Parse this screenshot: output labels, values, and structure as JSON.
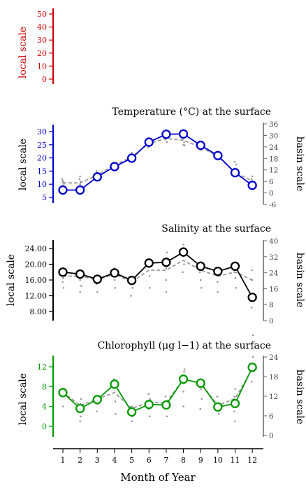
{
  "chart_data": [
    {
      "type": "line",
      "title": "",
      "ylabel_left": "local scale",
      "color": "#cc0000",
      "ylim_left": [
        -5,
        55
      ],
      "yticks_left": [
        "0",
        "10",
        "20",
        "30",
        "40",
        "50"
      ],
      "yticks_left_values": [
        0,
        10,
        20,
        30,
        40,
        50
      ],
      "series": []
    },
    {
      "type": "line",
      "title": "Temperature (°C) at the surface",
      "ylabel_left": "local scale",
      "ylabel_right": "basin scale",
      "color": "#0000cc",
      "ylim_left": [
        3,
        32
      ],
      "ylim_right": [
        -6,
        36
      ],
      "yticks_left": [
        "5",
        "10",
        "15",
        "20",
        "25",
        "30"
      ],
      "yticks_left_values": [
        5,
        10,
        15,
        20,
        25,
        30
      ],
      "yticks_right": [
        "-6",
        "0",
        "6",
        "12",
        "18",
        "24",
        "30",
        "36"
      ],
      "yticks_right_values": [
        -6,
        0,
        6,
        12,
        18,
        24,
        30,
        36
      ],
      "x": [
        1,
        2,
        3,
        4,
        5,
        6,
        7,
        8,
        9,
        10,
        11,
        12
      ],
      "local": [
        7.8,
        7.8,
        12.8,
        16.7,
        19.9,
        26.0,
        29.0,
        29.1,
        24.8,
        20.9,
        14.4,
        9.6
      ],
      "basin": [
        10.5,
        10.5,
        13.5,
        17.3,
        20.4,
        25.5,
        27.4,
        26.7,
        24.1,
        20.6,
        14.4,
        11.3
      ],
      "basin_points": [
        [
          1,
          9.0
        ],
        [
          1,
          9.5
        ],
        [
          1,
          10.2
        ],
        [
          1,
          10.8
        ],
        [
          1,
          11.3
        ],
        [
          1,
          12.0
        ],
        [
          2,
          9.0
        ],
        [
          2,
          10.0
        ],
        [
          2,
          11.0
        ],
        [
          2,
          12.0
        ],
        [
          2,
          13.0
        ],
        [
          3,
          12.5
        ],
        [
          3,
          13.5
        ],
        [
          3,
          15.0
        ],
        [
          3,
          12.0
        ],
        [
          4,
          15.5
        ],
        [
          4,
          17.0
        ],
        [
          4,
          18.0
        ],
        [
          4,
          16.5
        ],
        [
          5,
          19.0
        ],
        [
          5,
          20.0
        ],
        [
          5,
          21.5
        ],
        [
          5,
          22.0
        ],
        [
          5,
          18.8
        ],
        [
          6,
          24.0
        ],
        [
          6,
          25.0
        ],
        [
          6,
          26.5
        ],
        [
          6,
          25.8
        ],
        [
          7,
          26.0
        ],
        [
          7,
          27.0
        ],
        [
          7,
          28.0
        ],
        [
          7,
          28.5
        ],
        [
          8,
          25.0
        ],
        [
          8,
          26.0
        ],
        [
          8,
          27.0
        ],
        [
          8,
          28.0
        ],
        [
          8,
          24.8
        ],
        [
          9,
          23.0
        ],
        [
          9,
          24.0
        ],
        [
          9,
          25.0
        ],
        [
          9,
          26.0
        ],
        [
          10,
          19.5
        ],
        [
          10,
          20.5
        ],
        [
          10,
          21.5
        ],
        [
          10,
          22.0
        ],
        [
          11,
          13.5
        ],
        [
          11,
          15.0
        ],
        [
          11,
          16.0
        ],
        [
          11,
          17.5
        ],
        [
          11,
          18.5
        ],
        [
          12,
          10.0
        ],
        [
          12,
          11.0
        ],
        [
          12,
          12.0
        ],
        [
          12,
          13.0
        ]
      ]
    },
    {
      "type": "line",
      "title": "Salinity at the surface",
      "ylabel_left": "local scale",
      "ylabel_right": "basin scale",
      "color": "#000000",
      "ylim_left": [
        6,
        26
      ],
      "ylim_right": [
        0,
        40
      ],
      "yticks_left": [
        "8.00",
        "12.00",
        "16.00",
        "20.00",
        "24.00"
      ],
      "yticks_left_values": [
        8,
        12,
        16,
        20,
        24
      ],
      "yticks_right": [
        "0",
        "8",
        "16",
        "24",
        "32",
        "40"
      ],
      "yticks_right_values": [
        0,
        8,
        16,
        24,
        32,
        40
      ],
      "x": [
        1,
        2,
        3,
        4,
        5,
        6,
        7,
        8,
        9,
        10,
        11,
        12
      ],
      "local": [
        18.0,
        17.5,
        16.2,
        17.8,
        15.9,
        20.3,
        20.5,
        23.1,
        19.5,
        18.2,
        19.5,
        11.6
      ],
      "basin": [
        17.0,
        17.0,
        16.0,
        17.5,
        15.5,
        18.5,
        18.5,
        21.0,
        18.5,
        17.0,
        18.0,
        16.0
      ],
      "basin_points": [
        [
          1,
          14.0
        ],
        [
          1,
          15.5
        ],
        [
          1,
          16.5
        ],
        [
          2,
          13.0
        ],
        [
          2,
          14.5
        ],
        [
          2,
          16.0
        ],
        [
          2,
          17.5
        ],
        [
          3,
          13.0
        ],
        [
          3,
          15.0
        ],
        [
          3,
          16.0
        ],
        [
          4,
          14.0
        ],
        [
          4,
          16.0
        ],
        [
          4,
          19.0
        ],
        [
          5,
          12.0
        ],
        [
          5,
          14.0
        ],
        [
          5,
          15.5
        ],
        [
          5,
          16.5
        ],
        [
          6,
          14.0
        ],
        [
          6,
          17.0
        ],
        [
          6,
          19.5
        ],
        [
          6,
          21.0
        ],
        [
          7,
          13.0
        ],
        [
          7,
          16.0
        ],
        [
          7,
          19.0
        ],
        [
          7,
          23.0
        ],
        [
          8,
          18.0
        ],
        [
          8,
          20.0
        ],
        [
          8,
          22.0
        ],
        [
          8,
          25.0
        ],
        [
          9,
          14.0
        ],
        [
          9,
          16.0
        ],
        [
          9,
          18.0
        ],
        [
          9,
          20.0
        ],
        [
          10,
          13.0
        ],
        [
          10,
          15.5
        ],
        [
          10,
          17.0
        ],
        [
          11,
          14.0
        ],
        [
          11,
          16.5
        ],
        [
          11,
          18.0
        ],
        [
          12,
          2.0
        ],
        [
          12,
          9.0
        ],
        [
          12,
          16.0
        ],
        [
          12,
          18.5
        ]
      ]
    },
    {
      "type": "line",
      "title": "Chlorophyll (μg l−1) at the surface",
      "ylabel_left": "local scale",
      "ylabel_right": "basin scale",
      "color": "#009900",
      "ylim_left": [
        -2,
        14
      ],
      "ylim_right": [
        0,
        24
      ],
      "yticks_left": [
        "0",
        "4",
        "8",
        "12"
      ],
      "yticks_left_values": [
        0,
        4,
        8,
        12
      ],
      "yticks_right": [
        "0",
        "6",
        "12",
        "18",
        "24"
      ],
      "yticks_right_values": [
        0,
        6,
        12,
        18,
        24
      ],
      "x": [
        1,
        2,
        3,
        4,
        5,
        6,
        7,
        8,
        9,
        10,
        11,
        12
      ],
      "local": [
        6.8,
        3.6,
        5.4,
        8.5,
        2.9,
        4.4,
        4.3,
        9.5,
        8.7,
        3.9,
        4.6,
        11.9
      ],
      "basin": [
        6.9,
        4.2,
        5.5,
        6.8,
        3.6,
        4.8,
        4.8,
        9.5,
        8.7,
        4.2,
        5.6,
        11.5
      ],
      "basin_points": [
        [
          1,
          4.0
        ],
        [
          1,
          6.0
        ],
        [
          1,
          7.5
        ],
        [
          2,
          1.0
        ],
        [
          2,
          2.0
        ],
        [
          2,
          3.0
        ],
        [
          2,
          4.5
        ],
        [
          2,
          5.5
        ],
        [
          3,
          3.0
        ],
        [
          3,
          4.5
        ],
        [
          3,
          6.0
        ],
        [
          4,
          2.5
        ],
        [
          4,
          5.0
        ],
        [
          4,
          8.0
        ],
        [
          4,
          9.5
        ],
        [
          5,
          1.0
        ],
        [
          5,
          2.0
        ],
        [
          5,
          3.0
        ],
        [
          5,
          4.0
        ],
        [
          6,
          2.0
        ],
        [
          6,
          3.5
        ],
        [
          6,
          5.5
        ],
        [
          6,
          6.5
        ],
        [
          7,
          2.0
        ],
        [
          7,
          4.0
        ],
        [
          7,
          6.0
        ],
        [
          8,
          4.0
        ],
        [
          8,
          7.0
        ],
        [
          8,
          9.0
        ],
        [
          8,
          11.0
        ],
        [
          8,
          11.5
        ],
        [
          9,
          3.5
        ],
        [
          9,
          5.5
        ],
        [
          9,
          7.5
        ],
        [
          9,
          9.5
        ],
        [
          10,
          2.5
        ],
        [
          10,
          4.0
        ],
        [
          10,
          6.0
        ],
        [
          11,
          1.0
        ],
        [
          11,
          3.0
        ],
        [
          11,
          6.0
        ],
        [
          11,
          7.5
        ],
        [
          12,
          9.0
        ],
        [
          12,
          12.0
        ],
        [
          12,
          14.0
        ],
        [
          12,
          16.0
        ]
      ]
    }
  ],
  "x_axis": {
    "label": "Month of Year",
    "ticks": [
      "1",
      "2",
      "3",
      "4",
      "5",
      "6",
      "7",
      "8",
      "9",
      "10",
      "11",
      "12"
    ],
    "values": [
      1,
      2,
      3,
      4,
      5,
      6,
      7,
      8,
      9,
      10,
      11,
      12
    ]
  },
  "colors": {
    "basin": "#999999",
    "right_axis": "#666666"
  }
}
